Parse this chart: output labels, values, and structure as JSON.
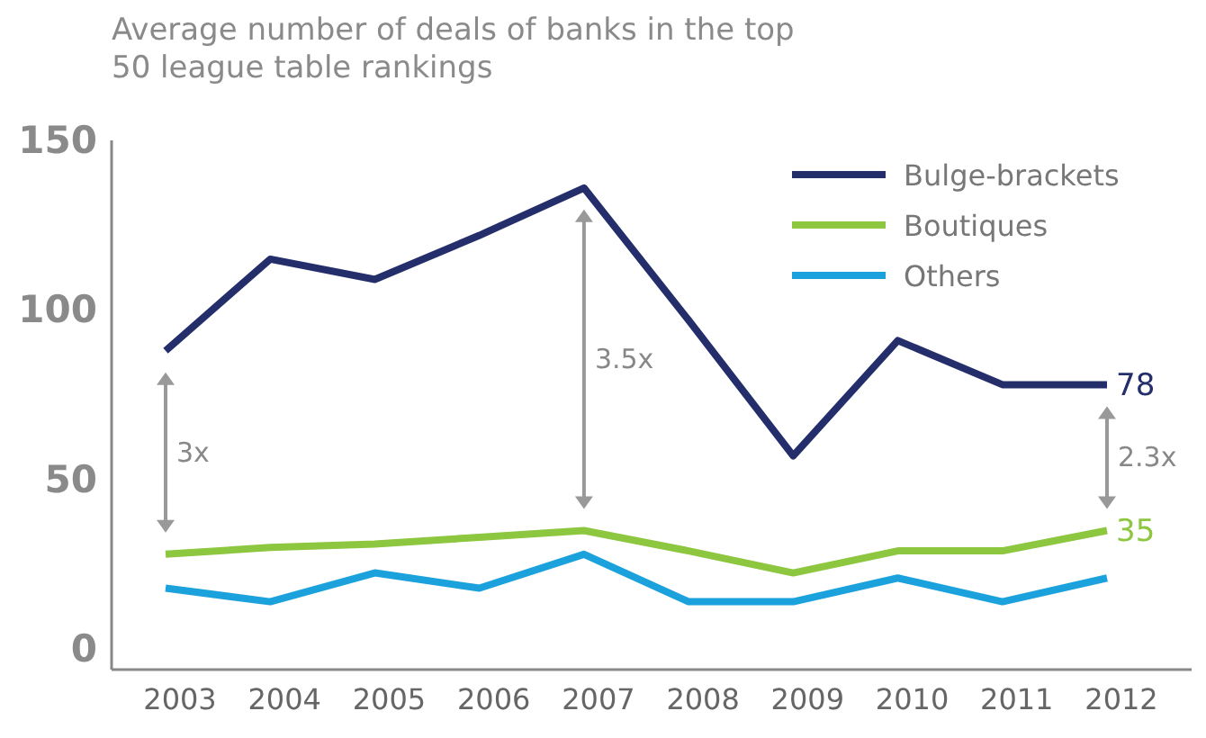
{
  "chart_data": {
    "type": "line",
    "title": "Average number of deals of banks in the top 50 league table rankings",
    "categories": [
      "2003",
      "2004",
      "2005",
      "2006",
      "2007",
      "2008",
      "2009",
      "2010",
      "2011",
      "2012"
    ],
    "ylim": [
      -6,
      150
    ],
    "yticks": [
      0,
      50,
      100,
      150
    ],
    "grid": false,
    "legend": "top right",
    "marker": "none",
    "line_style": "solid",
    "series": [
      {
        "name": "Bulge-brackets",
        "color": "#232e6b",
        "values": [
          88,
          115,
          109,
          122,
          136,
          97,
          57,
          91,
          78,
          78
        ],
        "value_labels": [
          null,
          null,
          null,
          null,
          null,
          null,
          null,
          null,
          null,
          "78"
        ]
      },
      {
        "name": "Boutiques",
        "color": "#8dc63f",
        "values": [
          28,
          30,
          31,
          33,
          35,
          29,
          22.5,
          29,
          29,
          35
        ],
        "value_labels": [
          null,
          null,
          null,
          null,
          null,
          null,
          null,
          null,
          null,
          "35"
        ]
      },
      {
        "name": "Others",
        "color": "#1ba1dc",
        "values": [
          18,
          14,
          22.5,
          18,
          28,
          14,
          14,
          21,
          14,
          21
        ]
      }
    ],
    "annotations": [
      "3x",
      "3.5x",
      "2.3x"
    ]
  }
}
